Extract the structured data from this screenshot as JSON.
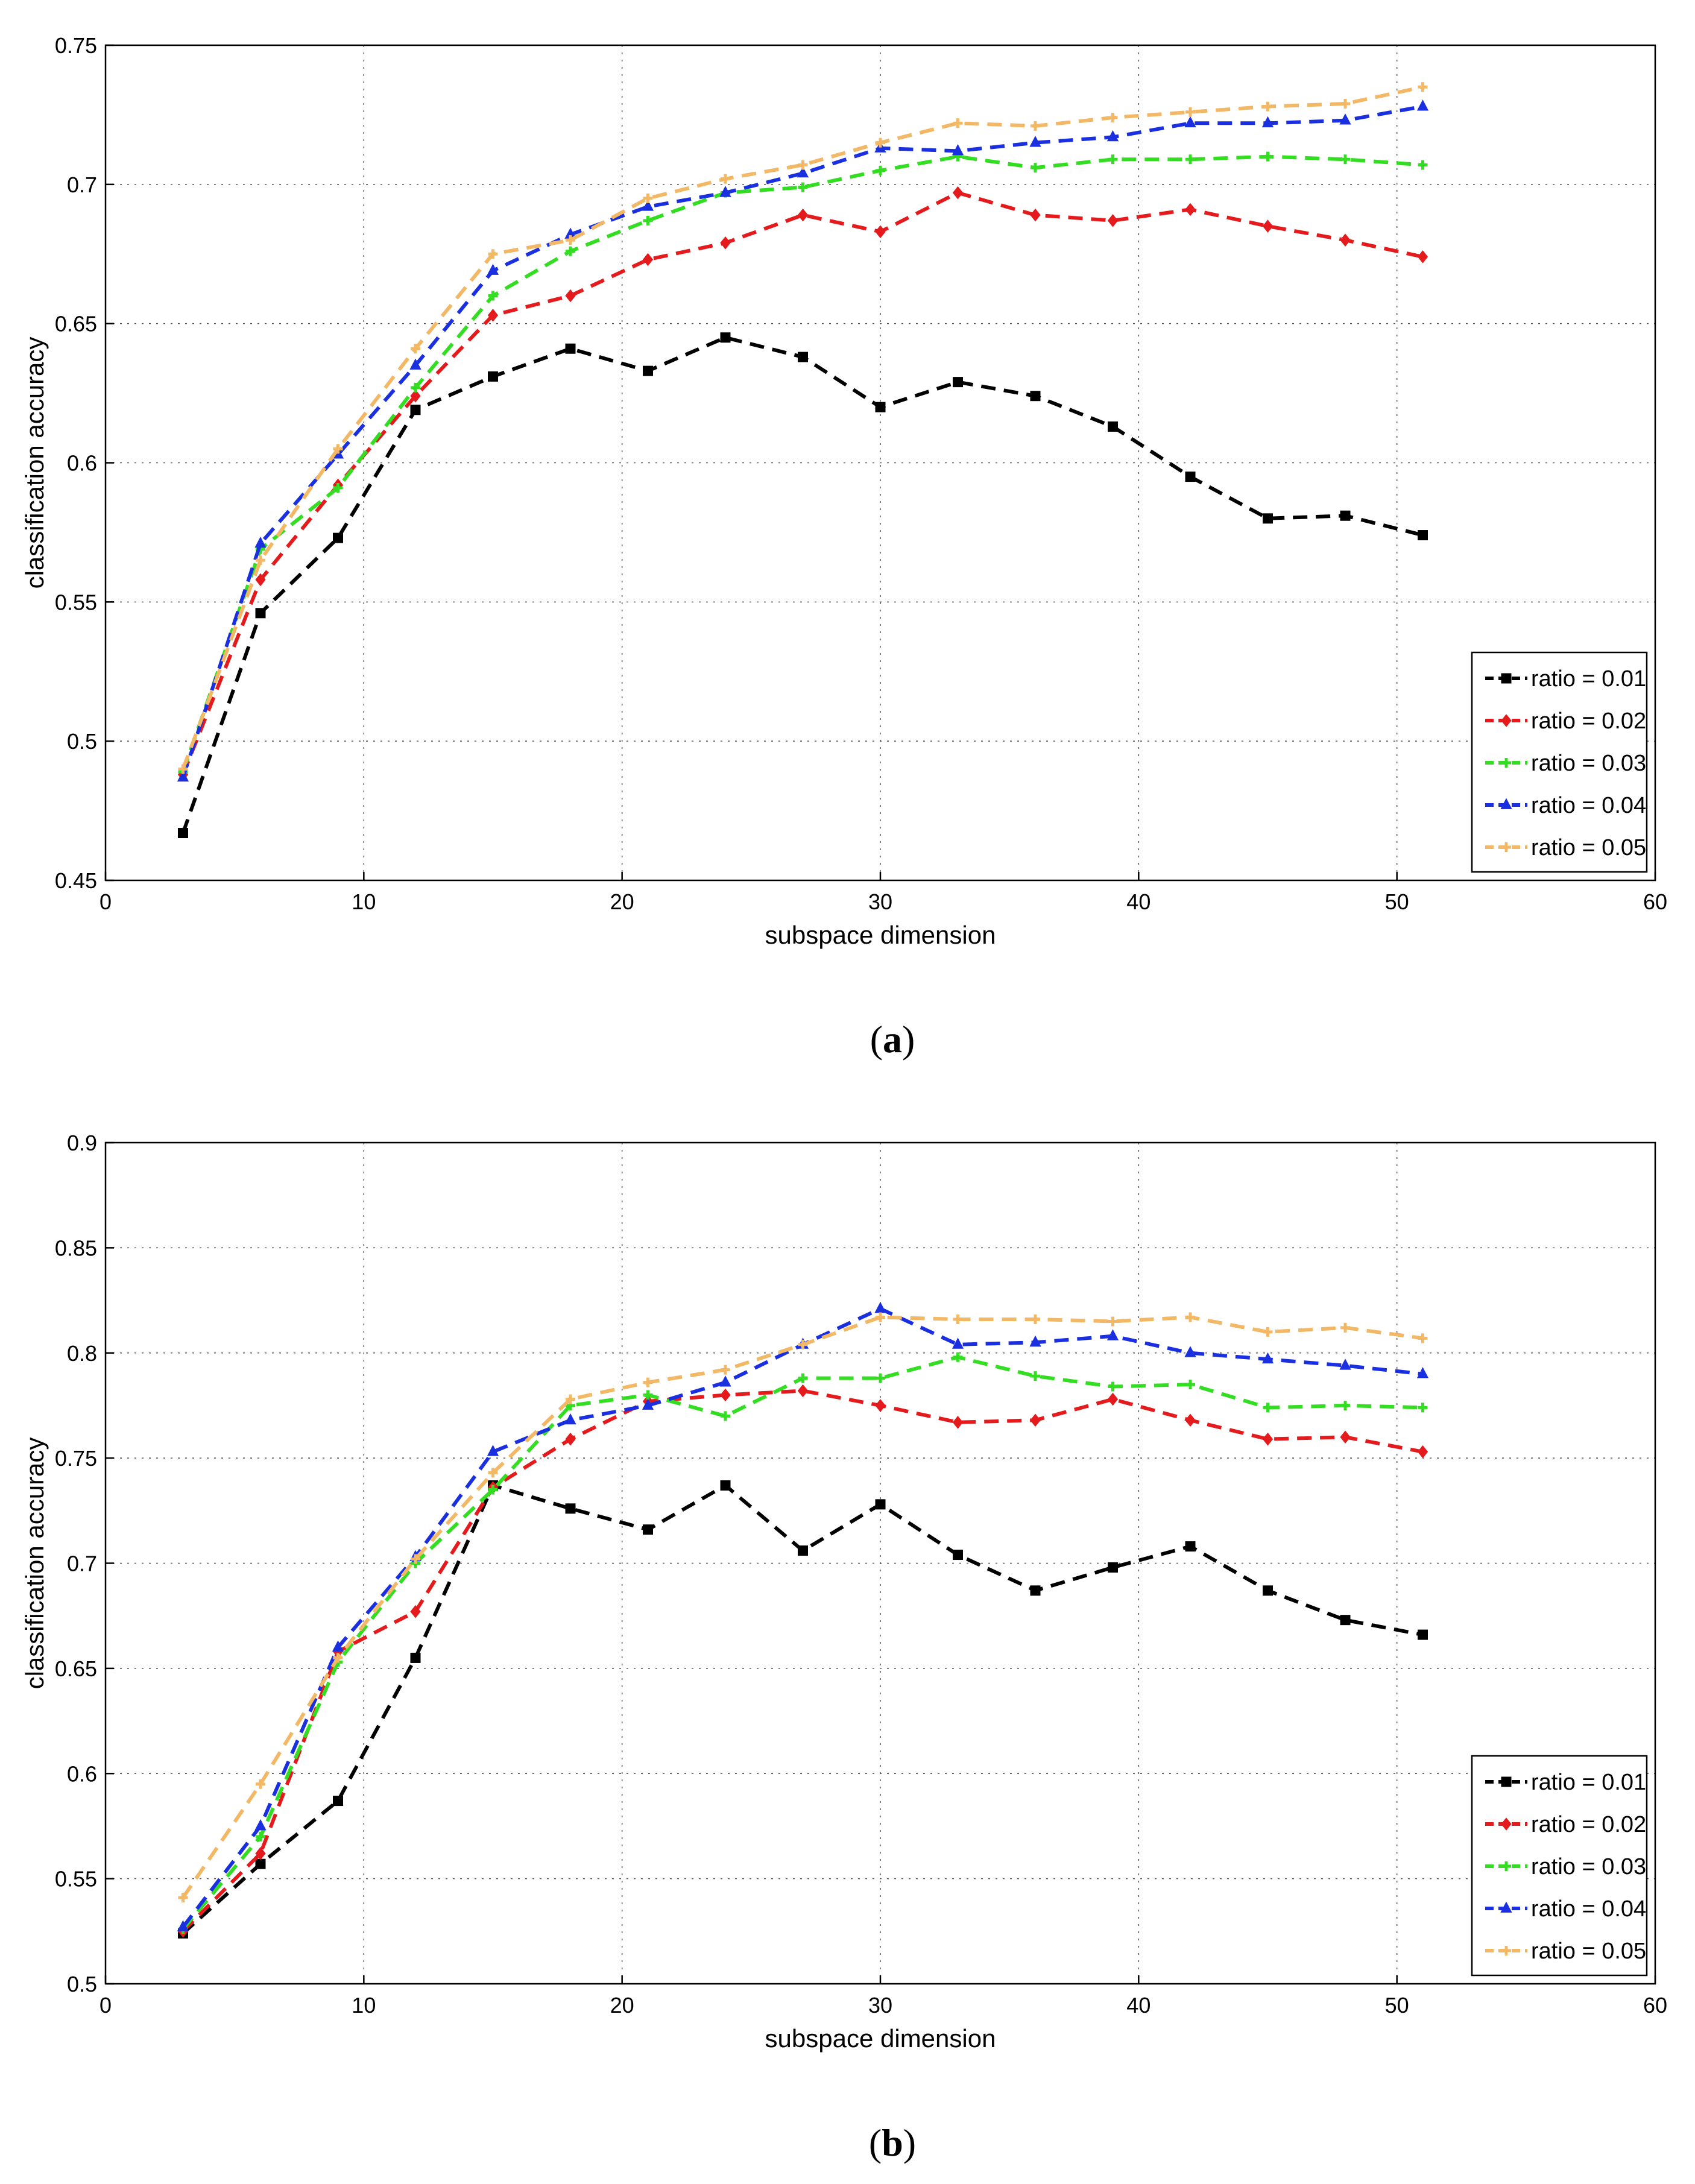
{
  "chart_data": [
    {
      "type": "line",
      "panel_label": "a",
      "xlabel": "subspace dimension",
      "ylabel": "classification accuracy",
      "xlim": [
        0,
        60
      ],
      "ylim": [
        0.45,
        0.75
      ],
      "xticks": [
        0,
        10,
        20,
        30,
        40,
        50,
        60
      ],
      "yticks": [
        0.45,
        0.5,
        0.55,
        0.6,
        0.65,
        0.7,
        0.75
      ],
      "grid": true,
      "legend_position": "lower-right",
      "x": [
        3,
        6,
        9,
        12,
        15,
        18,
        21,
        24,
        27,
        30,
        33,
        36,
        39,
        42,
        45,
        48,
        51
      ],
      "series": [
        {
          "name": "ratio = 0.01",
          "color": "#000000",
          "marker": "square",
          "values": [
            0.467,
            0.546,
            0.573,
            0.619,
            0.631,
            0.641,
            0.633,
            0.645,
            0.638,
            0.62,
            0.629,
            0.624,
            0.613,
            0.595,
            0.58,
            0.581,
            0.574
          ]
        },
        {
          "name": "ratio = 0.02",
          "color": "#e41a1c",
          "marker": "diamond",
          "values": [
            0.488,
            0.558,
            0.592,
            0.624,
            0.653,
            0.66,
            0.673,
            0.679,
            0.689,
            0.683,
            0.697,
            0.689,
            0.687,
            0.691,
            0.685,
            0.68,
            0.674
          ]
        },
        {
          "name": "ratio = 0.03",
          "color": "#33dd22",
          "marker": "plus",
          "values": [
            0.489,
            0.569,
            0.591,
            0.627,
            0.66,
            0.676,
            0.687,
            0.697,
            0.699,
            0.705,
            0.71,
            0.706,
            0.709,
            0.709,
            0.71,
            0.709,
            0.707
          ]
        },
        {
          "name": "ratio = 0.04",
          "color": "#1a2fe0",
          "marker": "triangle",
          "values": [
            0.487,
            0.571,
            0.603,
            0.635,
            0.669,
            0.682,
            0.692,
            0.697,
            0.704,
            0.713,
            0.712,
            0.715,
            0.717,
            0.722,
            0.722,
            0.723,
            0.728
          ]
        },
        {
          "name": "ratio = 0.05",
          "color": "#f2b866",
          "marker": "plus",
          "values": [
            0.49,
            0.565,
            0.605,
            0.641,
            0.675,
            0.68,
            0.695,
            0.702,
            0.707,
            0.715,
            0.722,
            0.721,
            0.724,
            0.726,
            0.728,
            0.729,
            0.735
          ]
        }
      ]
    },
    {
      "type": "line",
      "panel_label": "b",
      "xlabel": "subspace dimension",
      "ylabel": "classification accuracy",
      "xlim": [
        0,
        60
      ],
      "ylim": [
        0.5,
        0.9
      ],
      "xticks": [
        0,
        10,
        20,
        30,
        40,
        50,
        60
      ],
      "yticks": [
        0.5,
        0.55,
        0.6,
        0.65,
        0.7,
        0.75,
        0.8,
        0.85,
        0.9
      ],
      "grid": true,
      "legend_position": "lower-right",
      "x": [
        3,
        6,
        9,
        12,
        15,
        18,
        21,
        24,
        27,
        30,
        33,
        36,
        39,
        42,
        45,
        48,
        51
      ],
      "series": [
        {
          "name": "ratio = 0.01",
          "color": "#000000",
          "marker": "square",
          "values": [
            0.524,
            0.557,
            0.587,
            0.655,
            0.737,
            0.726,
            0.716,
            0.737,
            0.706,
            0.728,
            0.704,
            0.687,
            0.698,
            0.708,
            0.687,
            0.673,
            0.666
          ]
        },
        {
          "name": "ratio = 0.02",
          "color": "#e41a1c",
          "marker": "diamond",
          "values": [
            0.525,
            0.562,
            0.658,
            0.677,
            0.736,
            0.759,
            0.777,
            0.78,
            0.782,
            0.775,
            0.767,
            0.768,
            0.778,
            0.768,
            0.759,
            0.76,
            0.753
          ]
        },
        {
          "name": "ratio = 0.03",
          "color": "#33dd22",
          "marker": "plus",
          "values": [
            0.526,
            0.57,
            0.653,
            0.7,
            0.735,
            0.775,
            0.78,
            0.77,
            0.788,
            0.788,
            0.798,
            0.789,
            0.784,
            0.785,
            0.774,
            0.775,
            0.774
          ]
        },
        {
          "name": "ratio = 0.04",
          "color": "#1a2fe0",
          "marker": "triangle",
          "values": [
            0.527,
            0.575,
            0.66,
            0.703,
            0.753,
            0.768,
            0.775,
            0.786,
            0.804,
            0.821,
            0.804,
            0.805,
            0.808,
            0.8,
            0.797,
            0.794,
            0.79
          ]
        },
        {
          "name": "ratio = 0.05",
          "color": "#f2b866",
          "marker": "plus",
          "values": [
            0.541,
            0.595,
            0.655,
            0.702,
            0.743,
            0.778,
            0.786,
            0.792,
            0.804,
            0.817,
            0.816,
            0.816,
            0.815,
            0.817,
            0.81,
            0.812,
            0.807
          ]
        }
      ]
    }
  ]
}
